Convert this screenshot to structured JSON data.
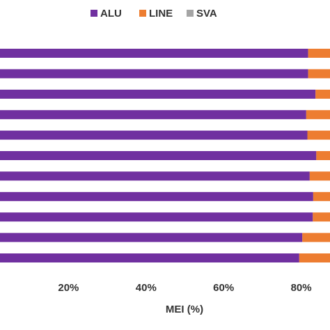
{
  "chart_data": {
    "type": "bar",
    "orientation": "horizontal",
    "stacked": true,
    "percent": true,
    "xlabel": "MEI (%)",
    "xlim": [
      0,
      100
    ],
    "xticks": [
      20,
      40,
      60,
      80
    ],
    "xtick_labels": [
      "20%",
      "40%",
      "60%",
      "80%"
    ],
    "legend_position": "top",
    "grid": false,
    "series": [
      {
        "name": "ALU",
        "color": "#7030a0",
        "values": [
          81.8,
          81.8,
          83.7,
          81.3,
          81.6,
          83.9,
          82.2,
          83.1,
          83.0,
          80.3,
          79.5
        ]
      },
      {
        "name": "LINE",
        "color": "#ed7d31",
        "values": [
          18.0,
          18.0,
          16.1,
          18.5,
          18.2,
          15.9,
          17.6,
          16.7,
          16.8,
          19.5,
          20.3
        ]
      },
      {
        "name": "SVA",
        "color": "#a5a5a5",
        "values": [
          0.2,
          0.2,
          0.2,
          0.2,
          0.2,
          0.2,
          0.2,
          0.2,
          0.2,
          0.2,
          0.2
        ]
      }
    ]
  }
}
